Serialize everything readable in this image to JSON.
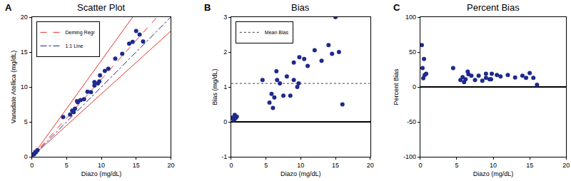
{
  "chart_data": [
    {
      "type": "scatter",
      "title": "Scatter Plot",
      "annotations": [
        "A"
      ],
      "x_label": "Diazo (mg/dL)",
      "y_label": "Vanadate Atellica (mg/dL)",
      "xlim": [
        0,
        20
      ],
      "xticks": [
        0,
        5,
        10,
        15,
        20
      ],
      "ylim": [
        0,
        20
      ],
      "yticks": [
        0,
        5,
        10,
        15,
        20
      ],
      "grid": false,
      "legend": "upper left",
      "series": [
        {
          "type": "line",
          "name": "Deming Regr",
          "color": "#e8302a",
          "line_style": "dashed",
          "x": [
            0,
            18
          ],
          "values": [
            0,
            20
          ]
        },
        {
          "type": "line",
          "name": "1:1 Line",
          "color": "#1a237e",
          "line_style": "dashdot",
          "x": [
            0,
            20
          ],
          "values": [
            0,
            20
          ]
        },
        {
          "type": "line",
          "color": "#e8302a",
          "line_style": "solid",
          "x": [
            0,
            14.5
          ],
          "values": [
            0,
            20
          ]
        },
        {
          "type": "line",
          "color": "#e8302a",
          "line_style": "solid",
          "x": [
            0,
            20
          ],
          "values": [
            0,
            18
          ]
        },
        {
          "type": "scatter",
          "color": "#1f2a8c",
          "marker": "circle",
          "x": [
            0.2,
            0.3,
            0.4,
            0.5,
            0.6,
            0.8,
            4.5,
            5.5,
            5.8,
            6.0,
            6.2,
            6.5,
            6.6,
            7.0,
            7.5,
            8.0,
            8.5,
            9.0,
            9.0,
            9.5,
            9.7,
            9.8,
            10.5,
            11.0,
            12.0,
            13.0,
            14.0,
            14.5,
            15.0,
            15.5,
            16.0
          ],
          "values": [
            0.32,
            0.38,
            0.45,
            0.7,
            0.7,
            0.95,
            5.7,
            6.05,
            6.6,
            6.4,
            6.9,
            7.95,
            7.8,
            8.1,
            8.25,
            9.3,
            9.25,
            10.2,
            10.7,
            10.5,
            10.8,
            11.65,
            12.3,
            12.6,
            14.05,
            14.75,
            16.2,
            16.45,
            18.0,
            17.5,
            16.5
          ]
        }
      ]
    },
    {
      "type": "scatter",
      "title": "Bias",
      "annotations": [
        "B"
      ],
      "x_label": "Diazo (mg/dL)",
      "y_label": "Bias (mg/dL)",
      "xlim": [
        0,
        20
      ],
      "xticks": [
        0,
        5,
        10,
        15,
        20
      ],
      "ylim": [
        -1,
        3
      ],
      "yticks": [
        -1,
        0,
        1,
        2,
        3
      ],
      "grid": false,
      "legend": "upper left",
      "series": [
        {
          "type": "line",
          "name": "Mean Bias",
          "color": "#444444",
          "line_style": "dotted",
          "x": [
            0,
            20
          ],
          "values": [
            1.1,
            1.1
          ]
        },
        {
          "type": "scatter",
          "color": "#1f2a8c",
          "marker": "circle",
          "x": [
            0.2,
            0.3,
            0.4,
            0.5,
            0.6,
            0.8,
            4.5,
            5.5,
            5.8,
            6.0,
            6.2,
            6.5,
            6.6,
            7.0,
            7.5,
            8.0,
            8.5,
            9.0,
            9.0,
            9.5,
            9.7,
            9.8,
            10.5,
            11.0,
            12.0,
            13.0,
            14.0,
            14.5,
            15.0,
            15.5,
            16.0
          ],
          "values": [
            0.12,
            0.08,
            0.05,
            0.2,
            0.1,
            0.15,
            1.2,
            0.55,
            0.8,
            0.4,
            0.7,
            1.45,
            1.2,
            1.1,
            0.75,
            1.3,
            0.75,
            1.2,
            1.7,
            1.0,
            1.1,
            1.85,
            1.8,
            1.6,
            2.05,
            1.75,
            2.2,
            1.95,
            3.0,
            2.0,
            0.5
          ]
        }
      ]
    },
    {
      "type": "scatter",
      "title": "Percent Bias",
      "annotations": [
        "C"
      ],
      "x_label": "Diazo (mg/dL)",
      "y_label": "Percent Bias",
      "xlim": [
        0,
        20
      ],
      "xticks": [
        0,
        5,
        10,
        15,
        20
      ],
      "ylim": [
        -100,
        100
      ],
      "yticks": [
        -100,
        -50,
        0,
        50,
        100
      ],
      "grid": false,
      "series": [
        {
          "type": "scatter",
          "color": "#1f2a8c",
          "marker": "circle",
          "x": [
            0.2,
            0.3,
            0.4,
            0.5,
            0.6,
            0.8,
            4.5,
            5.5,
            5.8,
            6.0,
            6.2,
            6.5,
            6.6,
            7.0,
            7.5,
            8.0,
            8.5,
            9.0,
            9.0,
            9.5,
            9.7,
            9.8,
            10.5,
            11.0,
            12.0,
            13.0,
            14.0,
            14.5,
            15.0,
            15.5,
            16.0
          ],
          "values": [
            60,
            27,
            12.5,
            40,
            17,
            19,
            27,
            10,
            14,
            7,
            11,
            22,
            18,
            16,
            10,
            16,
            9,
            13,
            19,
            11,
            11,
            19,
            17,
            15,
            17,
            13.5,
            16,
            13,
            20,
            13,
            3
          ]
        }
      ]
    }
  ]
}
